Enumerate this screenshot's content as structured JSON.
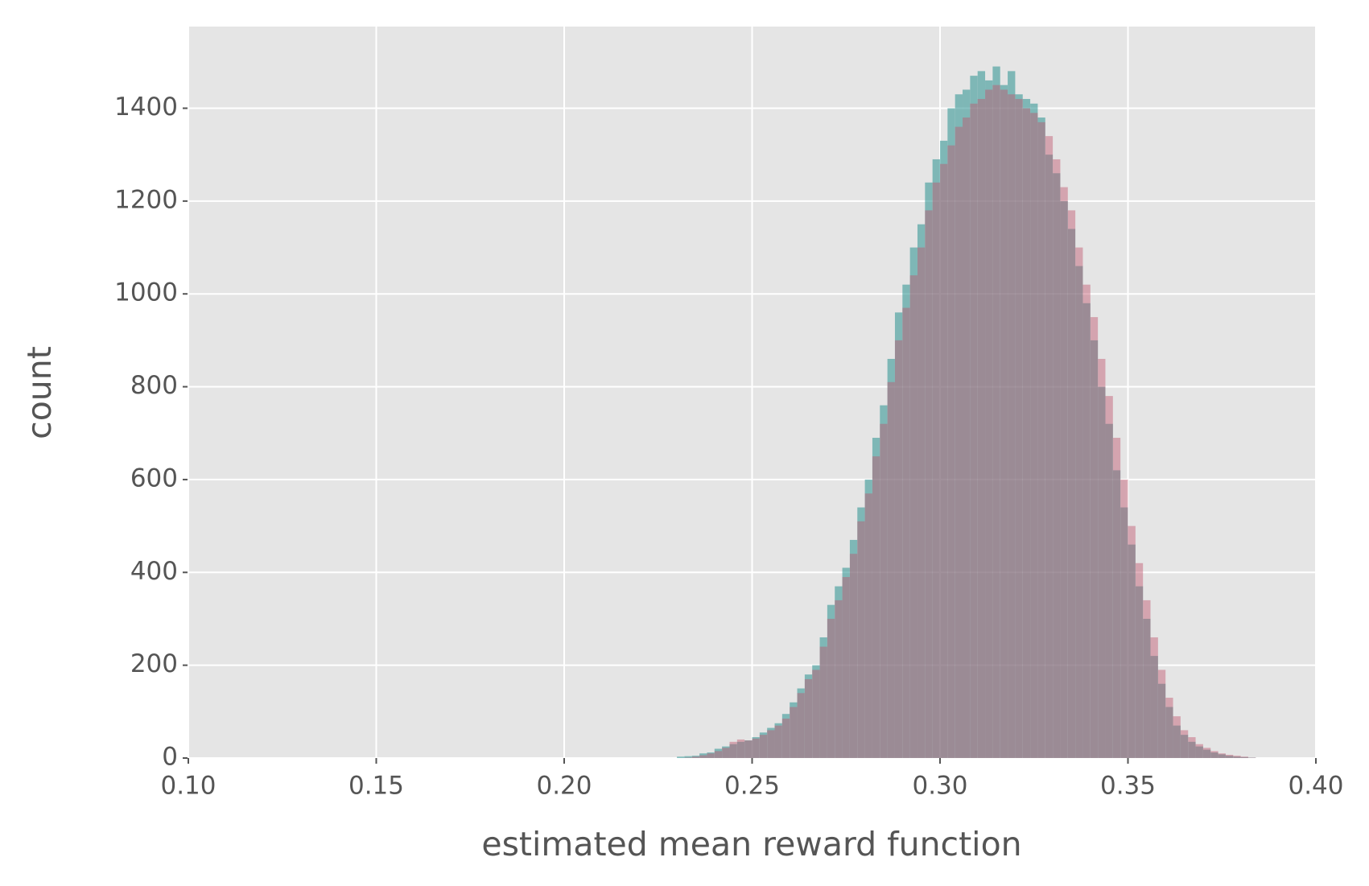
{
  "chart_data": {
    "type": "histogram",
    "x_label": "estimated mean reward function",
    "y_label": "count",
    "xlim": [
      0.1,
      0.4
    ],
    "ylim": [
      0,
      1576
    ],
    "xticks": [
      {
        "value": 0.1,
        "label": "0.10"
      },
      {
        "value": 0.15,
        "label": "0.15"
      },
      {
        "value": 0.2,
        "label": "0.20"
      },
      {
        "value": 0.25,
        "label": "0.25"
      },
      {
        "value": 0.3,
        "label": "0.30"
      },
      {
        "value": 0.35,
        "label": "0.35"
      },
      {
        "value": 0.4,
        "label": "0.40"
      }
    ],
    "yticks": [
      0,
      200,
      400,
      600,
      800,
      1000,
      1200,
      1400
    ],
    "grid": true,
    "bins": [
      0.23,
      0.232,
      0.234,
      0.236,
      0.238,
      0.24,
      0.242,
      0.244,
      0.246,
      0.248,
      0.25,
      0.252,
      0.254,
      0.256,
      0.258,
      0.26,
      0.262,
      0.264,
      0.266,
      0.268,
      0.27,
      0.272,
      0.274,
      0.276,
      0.278,
      0.28,
      0.282,
      0.284,
      0.286,
      0.288,
      0.29,
      0.292,
      0.294,
      0.296,
      0.298,
      0.3,
      0.302,
      0.304,
      0.306,
      0.308,
      0.31,
      0.312,
      0.314,
      0.316,
      0.318,
      0.32,
      0.322,
      0.324,
      0.326,
      0.328,
      0.33,
      0.332,
      0.334,
      0.336,
      0.338,
      0.34,
      0.342,
      0.344,
      0.346,
      0.348,
      0.35,
      0.352,
      0.354,
      0.356,
      0.358,
      0.36,
      0.362,
      0.364,
      0.366,
      0.368,
      0.37,
      0.372,
      0.374,
      0.376,
      0.378,
      0.38,
      0.382,
      0.384
    ],
    "series": [
      {
        "color": "#3a9a98",
        "alpha": 0.6,
        "values": [
          3,
          4,
          5,
          10,
          12,
          20,
          25,
          30,
          35,
          38,
          45,
          55,
          65,
          75,
          95,
          120,
          150,
          180,
          200,
          260,
          330,
          370,
          410,
          470,
          540,
          600,
          690,
          760,
          860,
          960,
          1020,
          1100,
          1150,
          1240,
          1290,
          1330,
          1400,
          1430,
          1440,
          1470,
          1480,
          1460,
          1490,
          1450,
          1480,
          1430,
          1420,
          1410,
          1380,
          1300,
          1260,
          1200,
          1140,
          1060,
          980,
          900,
          800,
          720,
          620,
          540,
          460,
          370,
          300,
          220,
          160,
          110,
          70,
          50,
          35,
          25,
          18,
          12,
          8,
          5,
          3,
          2,
          1
        ]
      },
      {
        "color": "#c0576f",
        "alpha": 0.45,
        "values": [
          0,
          1,
          3,
          6,
          10,
          15,
          22,
          35,
          40,
          38,
          42,
          50,
          60,
          70,
          85,
          110,
          140,
          170,
          190,
          240,
          300,
          340,
          390,
          440,
          510,
          570,
          650,
          720,
          810,
          900,
          970,
          1040,
          1100,
          1180,
          1240,
          1280,
          1320,
          1360,
          1380,
          1410,
          1420,
          1440,
          1450,
          1440,
          1430,
          1420,
          1400,
          1390,
          1370,
          1340,
          1290,
          1230,
          1180,
          1100,
          1020,
          950,
          860,
          780,
          690,
          600,
          500,
          420,
          340,
          260,
          190,
          130,
          90,
          60,
          45,
          30,
          22,
          15,
          10,
          7,
          5,
          3,
          1
        ]
      }
    ]
  }
}
